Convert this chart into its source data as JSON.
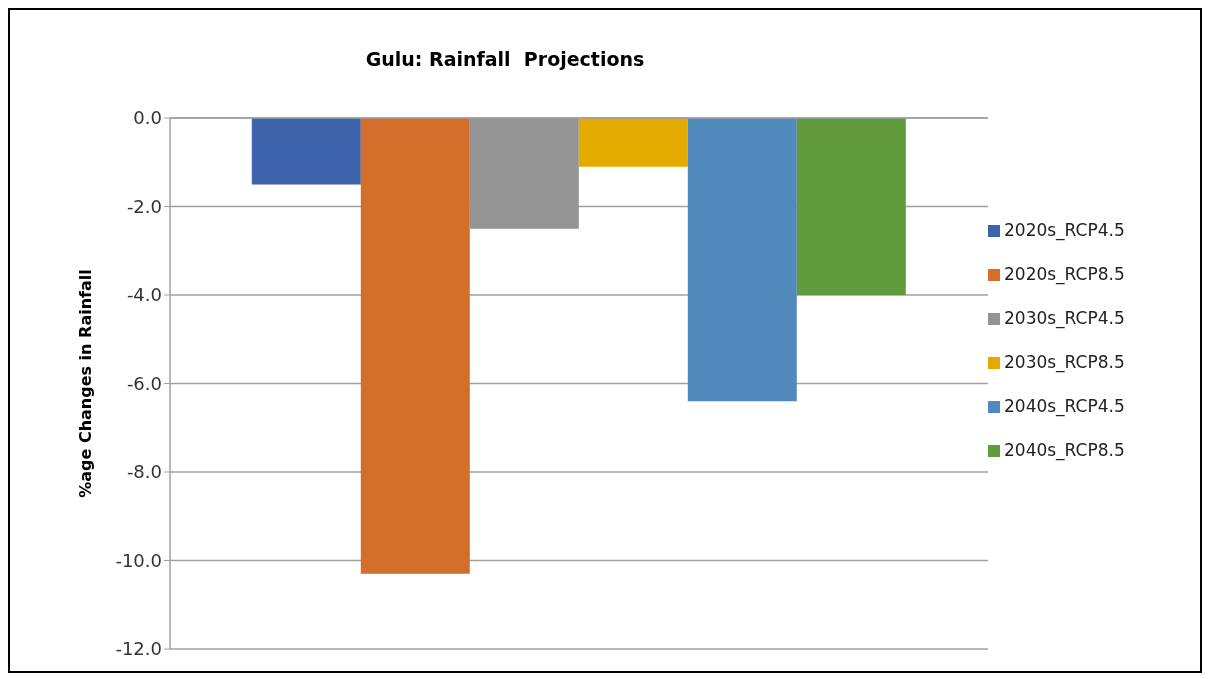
{
  "chart_data": {
    "type": "bar",
    "title": "Gulu: Rainfall  Projections",
    "ylabel": "%age Changes in Rainfall",
    "categories": [
      null
    ],
    "series": [
      {
        "name": "2020s_RCP4.5",
        "color": "#3d64ad",
        "values": [
          -1.5
        ]
      },
      {
        "name": "2020s_RCP8.5",
        "color": "#d46e2b",
        "values": [
          -10.3
        ]
      },
      {
        "name": "2030s_RCP4.5",
        "color": "#949494",
        "values": [
          -2.5
        ]
      },
      {
        "name": "2030s_RCP8.5",
        "color": "#e3aa00",
        "values": [
          -1.1
        ]
      },
      {
        "name": "2040s_RCP4.5",
        "color": "#508abd",
        "values": [
          -6.4
        ]
      },
      {
        "name": "2040s_RCP8.5",
        "color": "#629a3e",
        "values": [
          -4.0
        ]
      }
    ],
    "ylim": [
      -12,
      0
    ],
    "yticks": [
      {
        "value": 0,
        "label": "0.0"
      },
      {
        "value": -2,
        "label": "-2.0"
      },
      {
        "value": -4,
        "label": "-4.0"
      },
      {
        "value": -6,
        "label": "-6.0"
      },
      {
        "value": -8,
        "label": "-8.0"
      },
      {
        "value": -10,
        "label": "-10.0"
      },
      {
        "value": -12,
        "label": "-12.0"
      }
    ],
    "grid": "y",
    "legend": "right"
  }
}
